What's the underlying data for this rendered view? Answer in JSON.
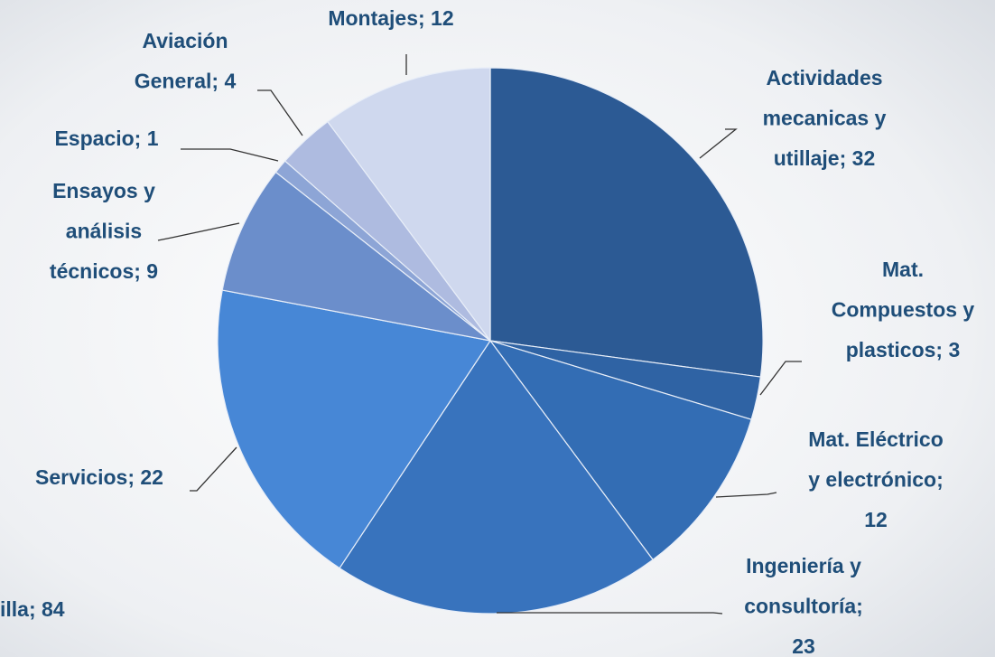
{
  "chart_data": {
    "type": "pie",
    "labels": [
      [
        "Actividades",
        "mecanicas y",
        "utillaje; 32"
      ],
      [
        "Mat.",
        "Compuestos y",
        "plasticos; 3"
      ],
      [
        "Mat. Eléctrico",
        "y electrónico;",
        "12"
      ],
      [
        "Ingeniería y",
        "consultoría;",
        "23"
      ],
      [
        "Servicios; 22"
      ],
      [
        "Ensayos y",
        "análisis",
        "técnicos; 9"
      ],
      [
        "Espacio; 1"
      ],
      [
        "Aviación",
        "General; 4"
      ],
      [
        "Montajes; 12"
      ]
    ],
    "values": [
      32,
      3,
      12,
      23,
      22,
      9,
      1,
      4,
      12
    ],
    "colors": [
      "#2c5a94",
      "#2f63a4",
      "#336db4",
      "#3873bd",
      "#4787d6",
      "#6b8ecb",
      "#8da5d6",
      "#aebbe0",
      "#cfd8ee"
    ],
    "annotation": "illa; 84"
  }
}
